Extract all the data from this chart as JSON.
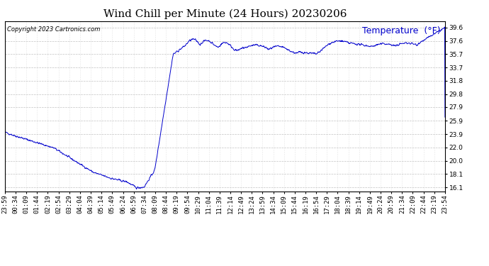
{
  "title": "Wind Chill per Minute (24 Hours) 20230206",
  "copyright": "Copyright 2023 Cartronics.com",
  "legend_label": "Temperature  (°F)",
  "line_color": "#0000cc",
  "background_color": "#ffffff",
  "plot_bg_color": "#ffffff",
  "grid_color": "#bbbbbb",
  "ylim": [
    15.5,
    40.5
  ],
  "yticks": [
    16.1,
    18.1,
    20.0,
    22.0,
    23.9,
    25.9,
    27.9,
    29.8,
    31.8,
    33.7,
    35.7,
    37.6,
    39.6
  ],
  "x_tick_labels": [
    "23:59",
    "00:34",
    "01:09",
    "01:44",
    "02:19",
    "02:54",
    "03:29",
    "04:04",
    "04:39",
    "05:14",
    "05:49",
    "06:24",
    "06:59",
    "07:34",
    "08:09",
    "08:44",
    "09:19",
    "09:54",
    "10:29",
    "11:04",
    "11:39",
    "12:14",
    "12:49",
    "13:24",
    "13:59",
    "14:34",
    "15:09",
    "15:44",
    "16:19",
    "16:54",
    "17:29",
    "18:04",
    "18:39",
    "19:14",
    "19:49",
    "20:24",
    "20:59",
    "21:34",
    "22:09",
    "22:44",
    "23:19",
    "23:54"
  ],
  "title_fontsize": 11,
  "tick_fontsize": 6.5,
  "legend_fontsize": 9,
  "copyright_fontsize": 6
}
